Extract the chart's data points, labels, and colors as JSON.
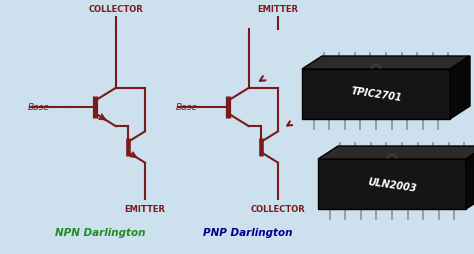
{
  "bg_color": "#cce0ed",
  "sc": "#7B1A1A",
  "npn_color": "#228B22",
  "pnp_color": "#00008B",
  "chip_front": "#111111",
  "chip_top": "#222222",
  "chip_right": "#080808",
  "chip_pin": "#888888",
  "chip_text": "#ffffff",
  "chip1": "TPIC2701",
  "chip2": "ULN2003",
  "npn_label": "NPN Darlington",
  "pnp_label": "PNP Darlington",
  "col1": "COLLECTOR",
  "emi1": "EMITTER",
  "base1": "Base",
  "col2": "COLLECTOR",
  "emi2": "EMITTER",
  "base2": "Base"
}
